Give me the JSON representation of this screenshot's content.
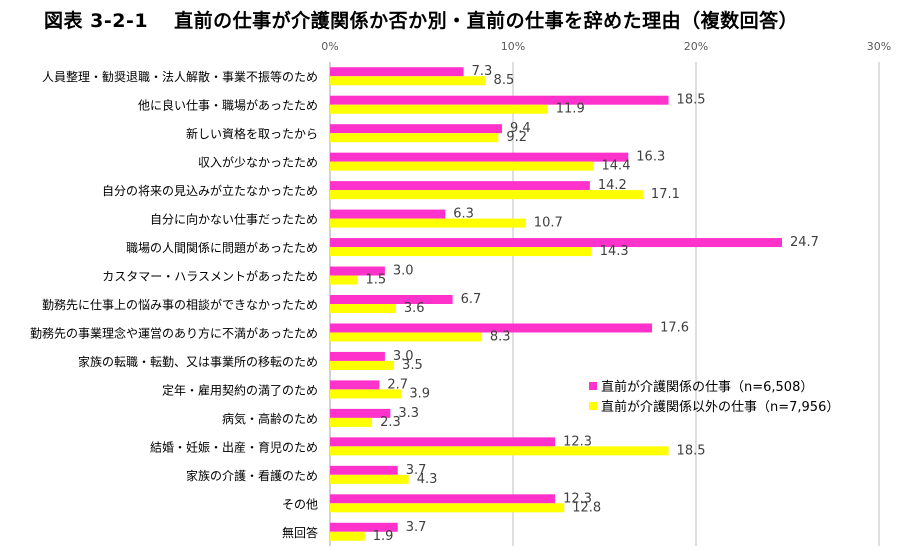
{
  "title": {
    "number": "図表 3-2-1",
    "text": "直前の仕事が介護関係か否か別・直前の仕事を辞めた理由（複数回答）"
  },
  "colors": {
    "series1": "#FF33CC",
    "series2": "#FFFF00",
    "grid": "#BFBFBF"
  },
  "chart_data": {
    "type": "bar",
    "orientation": "horizontal",
    "title": "直前の仕事が介護関係か否か別・直前の仕事を辞めた理由（複数回答）",
    "xlabel": "",
    "ylabel": "",
    "xlim": [
      0,
      30
    ],
    "xticks": [
      0,
      10,
      20,
      30
    ],
    "xtick_labels": [
      "0%",
      "10%",
      "20%",
      "30%"
    ],
    "categories": [
      "人員整理・勧奨退職・法人解散・事業不振等のため",
      "他に良い仕事・職場があったため",
      "新しい資格を取ったから",
      "収入が少なかったため",
      "自分の将来の見込みが立たなかったため",
      "自分に向かない仕事だったため",
      "職場の人間関係に問題があったため",
      "カスタマー・ハラスメントがあったため",
      "勤務先に仕事上の悩み事の相談ができなかったため",
      "勤務先の事業理念や運営のあり方に不満があったため",
      "家族の転職・転勤、又は事業所の移転のため",
      "定年・雇用契約の満了のため",
      "病気・高齢のため",
      "結婚・妊娠・出産・育児のため",
      "家族の介護・看護のため",
      "その他",
      "無回答"
    ],
    "series": [
      {
        "name": "直前が介護関係の仕事（n=6,508）",
        "values": [
          7.3,
          18.5,
          9.4,
          16.3,
          14.2,
          6.3,
          24.7,
          3.0,
          6.7,
          17.6,
          3.0,
          2.7,
          3.3,
          12.3,
          3.7,
          12.3,
          3.7
        ]
      },
      {
        "name": "直前が介護関係以外の仕事（n=7,956）",
        "values": [
          8.5,
          11.9,
          9.2,
          14.4,
          17.1,
          10.7,
          14.3,
          1.5,
          3.6,
          8.3,
          3.5,
          3.9,
          2.3,
          18.5,
          4.3,
          12.8,
          1.9
        ]
      }
    ],
    "legend_position": "right-middle"
  }
}
